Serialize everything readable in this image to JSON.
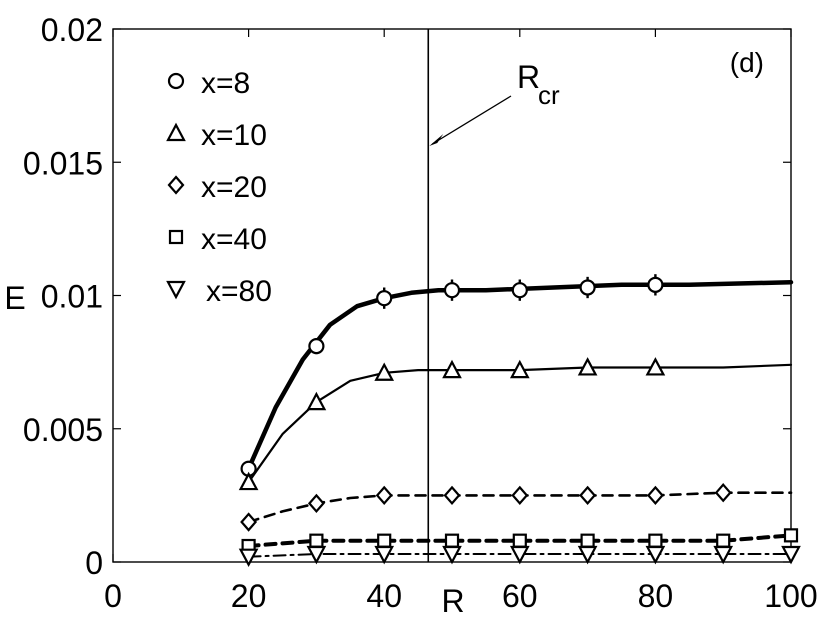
{
  "chart_data": {
    "type": "line",
    "panel_label": "(d)",
    "xlabel": "R",
    "ylabel": "E",
    "xlim": [
      0,
      100
    ],
    "ylim": [
      0,
      0.02
    ],
    "xticks": [
      "0",
      "20",
      "40",
      "60",
      "80",
      "100"
    ],
    "yticks": [
      "0",
      "0.005",
      "0.01",
      "0.015",
      "0.02"
    ],
    "grid": false,
    "legend_position": "top-left",
    "vertical_line": {
      "x": 46.5,
      "label": "R",
      "label_sub": "cr"
    },
    "series": [
      {
        "name": "x=8",
        "marker": "circle",
        "line": "solid-thick",
        "x": [
          20,
          30,
          40,
          50,
          60,
          70,
          80
        ],
        "y": [
          0.0035,
          0.0081,
          0.0099,
          0.0102,
          0.0102,
          0.0103,
          0.0104
        ],
        "err": [
          0.0002,
          0.0003,
          0.0004,
          0.0004,
          0.0004,
          0.0004,
          0.0004
        ],
        "curve_x": [
          20,
          24,
          28,
          32,
          36,
          40,
          44,
          48,
          55,
          65,
          75,
          85,
          100
        ],
        "curve_y": [
          0.0035,
          0.0058,
          0.0076,
          0.0089,
          0.0096,
          0.0099,
          0.0101,
          0.0102,
          0.0102,
          0.0103,
          0.0104,
          0.0104,
          0.0105
        ]
      },
      {
        "name": "x=10",
        "marker": "triangle-up",
        "line": "solid",
        "x": [
          20,
          30,
          40,
          50,
          60,
          70,
          80
        ],
        "y": [
          0.003,
          0.006,
          0.0071,
          0.0072,
          0.0072,
          0.0073,
          0.0073
        ],
        "err": [
          0,
          0,
          0,
          0,
          0,
          0,
          0
        ],
        "curve_x": [
          20,
          25,
          30,
          35,
          40,
          45,
          50,
          60,
          70,
          80,
          90,
          100
        ],
        "curve_y": [
          0.003,
          0.0048,
          0.006,
          0.0068,
          0.0071,
          0.0072,
          0.0072,
          0.0072,
          0.0073,
          0.0073,
          0.0073,
          0.0074
        ]
      },
      {
        "name": "x=20",
        "marker": "diamond",
        "line": "dashed",
        "x": [
          20,
          30,
          40,
          50,
          60,
          70,
          80,
          90
        ],
        "y": [
          0.0015,
          0.0022,
          0.0025,
          0.0025,
          0.0025,
          0.0025,
          0.0025,
          0.0026
        ],
        "err": [
          0,
          0,
          0,
          0,
          0,
          0,
          0,
          0
        ],
        "curve_x": [
          20,
          25,
          30,
          35,
          40,
          50,
          60,
          70,
          80,
          90,
          100
        ],
        "curve_y": [
          0.0015,
          0.0019,
          0.0022,
          0.0024,
          0.0025,
          0.0025,
          0.0025,
          0.0025,
          0.0025,
          0.0026,
          0.0026
        ]
      },
      {
        "name": "x=40",
        "marker": "square",
        "line": "dashed-thick",
        "x": [
          20,
          30,
          40,
          50,
          60,
          70,
          80,
          90,
          100
        ],
        "y": [
          0.0006,
          0.0008,
          0.0008,
          0.0008,
          0.0008,
          0.0008,
          0.0008,
          0.0008,
          0.001
        ],
        "err": [
          0,
          0,
          0,
          0,
          0,
          0,
          0,
          0,
          0
        ],
        "curve_x": [
          20,
          30,
          40,
          50,
          60,
          70,
          80,
          90,
          100
        ],
        "curve_y": [
          0.0006,
          0.0008,
          0.0008,
          0.0008,
          0.0008,
          0.0008,
          0.0008,
          0.0008,
          0.001
        ]
      },
      {
        "name": "x=80",
        "marker": "triangle-down",
        "line": "dash-dot",
        "x": [
          20,
          30,
          40,
          50,
          60,
          70,
          80,
          90,
          100
        ],
        "y": [
          0.0002,
          0.0003,
          0.0003,
          0.0003,
          0.0003,
          0.0003,
          0.0003,
          0.0003,
          0.0003
        ],
        "err": [
          0,
          0,
          0,
          0,
          0,
          0,
          0,
          0,
          0
        ],
        "curve_x": [
          20,
          30,
          40,
          50,
          60,
          70,
          80,
          90,
          100
        ],
        "curve_y": [
          0.0002,
          0.0003,
          0.0003,
          0.0003,
          0.0003,
          0.0003,
          0.0003,
          0.0003,
          0.0003
        ]
      }
    ]
  }
}
